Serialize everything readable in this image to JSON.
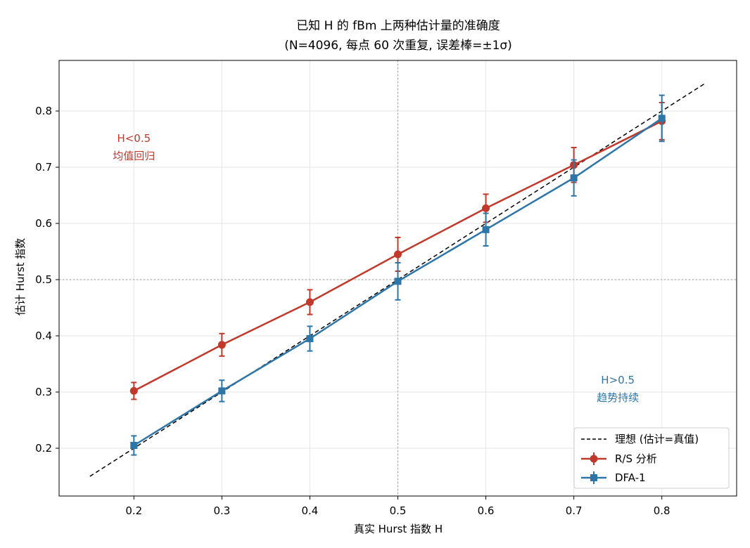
{
  "chart_data": {
    "type": "line",
    "title": "已知 H 的 fBm 上两种估计量的准确度",
    "subtitle": "(N=4096, 每点 60 次重复, 误差棒=±1σ)",
    "xlabel": "真实 Hurst 指数 H",
    "ylabel": "估计 Hurst 指数",
    "xlim": [
      0.115,
      0.885
    ],
    "ylim": [
      0.115,
      0.89
    ],
    "x_ticks": [
      0.2,
      0.3,
      0.4,
      0.5,
      0.6,
      0.7,
      0.8
    ],
    "y_ticks": [
      0.2,
      0.3,
      0.4,
      0.5,
      0.6,
      0.7,
      0.8
    ],
    "x_tick_labels": [
      "0.2",
      "0.3",
      "0.4",
      "0.5",
      "0.6",
      "0.7",
      "0.8"
    ],
    "y_tick_labels": [
      "0.2",
      "0.3",
      "0.4",
      "0.5",
      "0.6",
      "0.7",
      "0.8"
    ],
    "grid": true,
    "reference_lines": {
      "x": 0.5,
      "y": 0.5
    },
    "ideal_line": {
      "name": "理想 (估计=真值)",
      "x": [
        0.15,
        0.85
      ],
      "y": [
        0.15,
        0.85
      ],
      "color": "#000000"
    },
    "x": [
      0.2,
      0.3,
      0.4,
      0.5,
      0.6,
      0.7,
      0.8
    ],
    "series": [
      {
        "name": "R/S 分析",
        "marker": "circle",
        "color": "#c0392b",
        "values": [
          0.302,
          0.384,
          0.46,
          0.545,
          0.627,
          0.704,
          0.782
        ],
        "errors": [
          0.015,
          0.02,
          0.022,
          0.03,
          0.025,
          0.031,
          0.033
        ]
      },
      {
        "name": "DFA-1",
        "marker": "square",
        "color": "#2e75a8",
        "values": [
          0.205,
          0.302,
          0.395,
          0.497,
          0.589,
          0.681,
          0.787
        ],
        "errors": [
          0.017,
          0.019,
          0.022,
          0.033,
          0.029,
          0.032,
          0.041
        ]
      }
    ],
    "annotations": [
      {
        "lines": [
          "H<0.5",
          "均值回归"
        ],
        "x": 0.2,
        "y": 0.73,
        "color": "#c0392b"
      },
      {
        "lines": [
          "H>0.5",
          "趋势持续"
        ],
        "x": 0.75,
        "y": 0.3,
        "color": "#2e75a8"
      }
    ],
    "legend_position": "lower-right"
  }
}
